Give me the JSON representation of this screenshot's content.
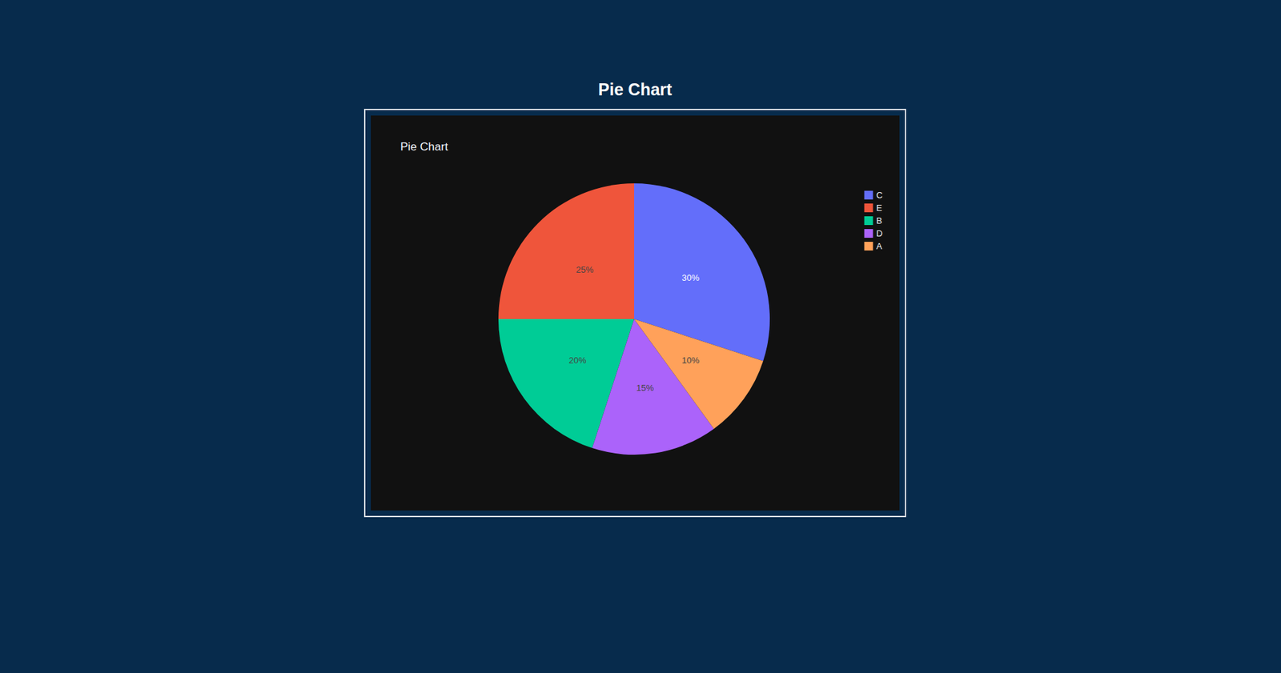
{
  "heading": "Pie Chart",
  "chart_data": {
    "type": "pie",
    "title": "Pie Chart",
    "categories": [
      "C",
      "E",
      "B",
      "D",
      "A"
    ],
    "values": [
      30,
      25,
      20,
      15,
      10
    ],
    "value_labels": [
      "30%",
      "25%",
      "20%",
      "15%",
      "10%"
    ],
    "colors": [
      "#636efa",
      "#ef553b",
      "#00cc96",
      "#ab63fa",
      "#ffa15a"
    ],
    "data_labels": true,
    "legend": "top-right"
  }
}
